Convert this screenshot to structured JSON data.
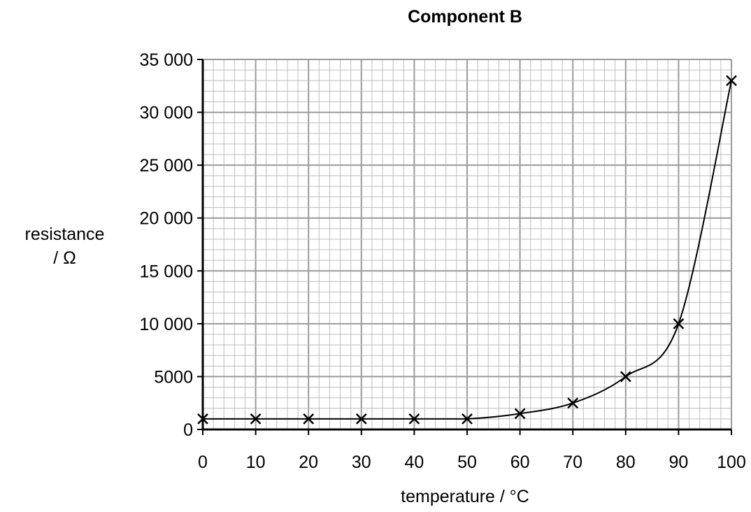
{
  "chart_data": {
    "type": "line",
    "title": "Component B",
    "xlabel": "temperature / °C",
    "ylabel_line1": "resistance",
    "ylabel_line2": "/ Ω",
    "x": [
      0,
      10,
      20,
      30,
      40,
      50,
      60,
      70,
      80,
      90,
      100
    ],
    "y": [
      1000,
      1000,
      1000,
      1000,
      1000,
      1000,
      1500,
      2500,
      5000,
      10000,
      33000
    ],
    "xlim": [
      0,
      100
    ],
    "ylim": [
      0,
      35000
    ],
    "x_ticks": [
      0,
      10,
      20,
      30,
      40,
      50,
      60,
      70,
      80,
      90,
      100
    ],
    "y_ticks": [
      0,
      5000,
      10000,
      15000,
      20000,
      25000,
      30000,
      35000
    ],
    "x_tick_labels": [
      "0",
      "10",
      "20",
      "30",
      "40",
      "50",
      "60",
      "70",
      "80",
      "90",
      "100"
    ],
    "y_tick_labels": [
      "0",
      "5000",
      "10 000",
      "15 000",
      "20 000",
      "25 000",
      "30 000",
      "35 000"
    ],
    "grid": true,
    "marker": "cross",
    "colors": {
      "line": "#000000",
      "grid_minor": "#bdbdbd",
      "grid_major": "#9a9a9a"
    }
  }
}
